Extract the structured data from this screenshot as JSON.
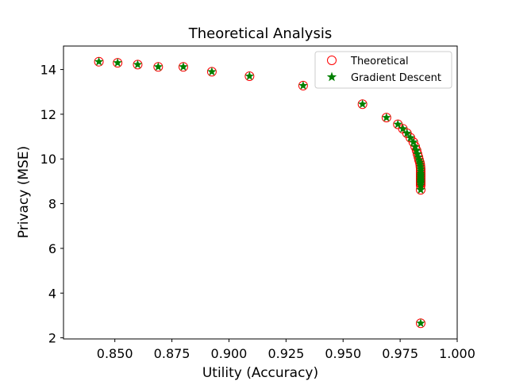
{
  "chart_data": {
    "type": "scatter",
    "title": "Theoretical Analysis",
    "xlabel": "Utility (Accuracy)",
    "ylabel": "Privacy (MSE)",
    "xlim": [
      0.8275,
      1.0
    ],
    "ylim": [
      1.95,
      15.05
    ],
    "xticks": [
      0.85,
      0.875,
      0.9,
      0.925,
      0.95,
      0.975,
      1.0
    ],
    "xtick_labels": [
      "0.850",
      "0.875",
      "0.900",
      "0.925",
      "0.950",
      "0.975",
      "1.000"
    ],
    "yticks": [
      2,
      4,
      6,
      8,
      10,
      12,
      14
    ],
    "ytick_labels": [
      "2",
      "4",
      "6",
      "8",
      "10",
      "12",
      "14"
    ],
    "grid": false,
    "legend_position": "top-right",
    "colors": {
      "theoretical": "#ff0000",
      "gradient": "#008000"
    },
    "series": [
      {
        "name": "Theoretical",
        "marker": "open-circle",
        "x": [
          0.843,
          0.8512,
          0.86,
          0.869,
          0.88,
          0.8925,
          0.909,
          0.9325,
          0.9585,
          0.969,
          0.974,
          0.9762,
          0.978,
          0.9795,
          0.9808,
          0.9816,
          0.9822,
          0.9826,
          0.983,
          0.9833,
          0.9836,
          0.9838,
          0.9839,
          0.984,
          0.984,
          0.984,
          0.984,
          0.984,
          0.984,
          0.984,
          0.984,
          0.984,
          0.984,
          0.984,
          0.984,
          0.984
        ],
        "y": [
          14.35,
          14.3,
          14.22,
          14.12,
          14.12,
          13.9,
          13.7,
          13.28,
          12.45,
          11.85,
          11.55,
          11.35,
          11.15,
          10.95,
          10.75,
          10.55,
          10.38,
          10.22,
          10.08,
          9.95,
          9.85,
          9.75,
          9.65,
          9.55,
          9.45,
          9.35,
          9.28,
          9.22,
          9.15,
          9.08,
          9.02,
          8.96,
          8.9,
          8.82,
          8.62,
          2.65
        ]
      },
      {
        "name": "Gradient Descent",
        "marker": "star",
        "x": [
          0.843,
          0.8512,
          0.86,
          0.869,
          0.88,
          0.8925,
          0.909,
          0.9325,
          0.9585,
          0.969,
          0.974,
          0.9762,
          0.978,
          0.9795,
          0.9808,
          0.9816,
          0.9822,
          0.9826,
          0.983,
          0.9833,
          0.9836,
          0.9838,
          0.9839,
          0.984,
          0.984,
          0.984,
          0.984,
          0.984,
          0.984,
          0.984,
          0.984,
          0.984,
          0.984,
          0.984,
          0.984,
          0.984
        ],
        "y": [
          14.35,
          14.3,
          14.22,
          14.12,
          14.12,
          13.9,
          13.7,
          13.28,
          12.45,
          11.85,
          11.55,
          11.35,
          11.15,
          10.95,
          10.75,
          10.55,
          10.38,
          10.22,
          10.08,
          9.95,
          9.85,
          9.75,
          9.65,
          9.55,
          9.45,
          9.35,
          9.28,
          9.22,
          9.15,
          9.08,
          9.02,
          8.96,
          8.9,
          8.82,
          8.62,
          2.65
        ]
      }
    ]
  }
}
